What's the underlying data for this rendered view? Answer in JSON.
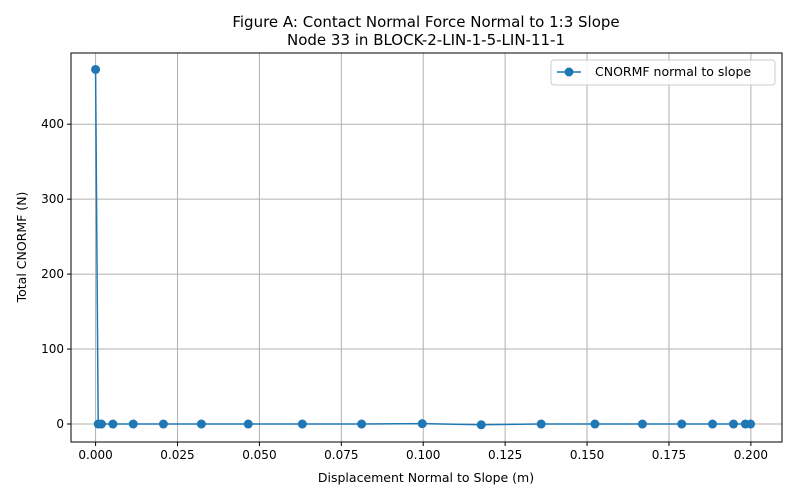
{
  "chart_data": {
    "type": "line",
    "title": "Figure A: Contact Normal Force Normal to 1:3 Slope",
    "subtitle": "Node 33 in BLOCK-2-LIN-1-5-LIN-11-1",
    "xlabel": "Displacement Normal to Slope (m)",
    "ylabel": "Total CNORMF (N)",
    "xlim": [
      -0.0075,
      0.2095
    ],
    "ylim": [
      -24,
      495
    ],
    "xticks": [
      0.0,
      0.025,
      0.05,
      0.075,
      0.1,
      0.125,
      0.15,
      0.175,
      0.2
    ],
    "xtick_labels": [
      "0.000",
      "0.025",
      "0.050",
      "0.075",
      "0.100",
      "0.125",
      "0.150",
      "0.175",
      "0.200"
    ],
    "yticks": [
      0,
      100,
      200,
      300,
      400
    ],
    "ytick_labels": [
      "0",
      "100",
      "200",
      "300",
      "400"
    ],
    "grid": true,
    "legend_position": "top-right",
    "colors": {
      "series": "#1f77b4"
    },
    "series": [
      {
        "name": "CNORMF normal to slope",
        "x": [
          0.0,
          0.0008,
          0.0018,
          0.0053,
          0.0115,
          0.0207,
          0.0323,
          0.0466,
          0.0631,
          0.0812,
          0.0997,
          0.1177,
          0.136,
          0.1524,
          0.1669,
          0.1789,
          0.1883,
          0.1947,
          0.1983,
          0.1999
        ],
        "y": [
          473,
          0,
          0,
          0,
          0,
          0,
          0,
          0,
          0,
          0,
          0.5,
          -1,
          0,
          0,
          0,
          0,
          0,
          0,
          0,
          0
        ]
      }
    ]
  }
}
